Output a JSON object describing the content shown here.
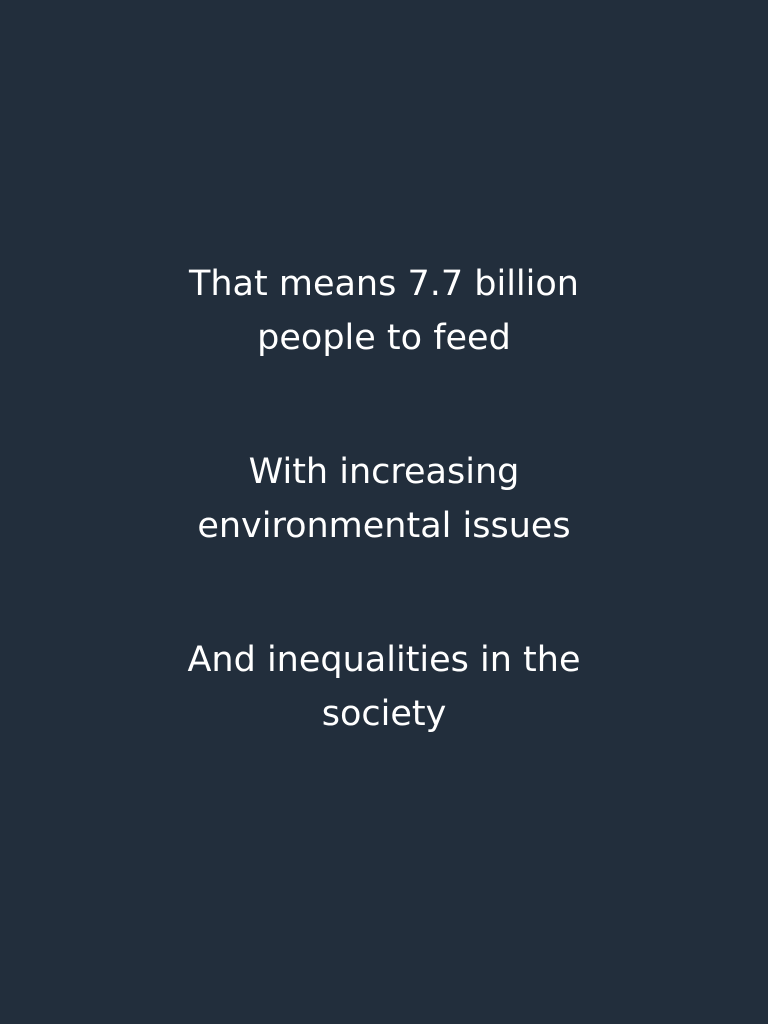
{
  "background_color": "#222e3c",
  "text_color": "#ffffff",
  "paragraphs": [
    {
      "line1": "That means 7.7 billion",
      "line2": "people to feed"
    },
    {
      "line1": "With increasing",
      "line2": "environmental issues"
    },
    {
      "line1": "And inequalities in the",
      "line2": "society"
    }
  ]
}
